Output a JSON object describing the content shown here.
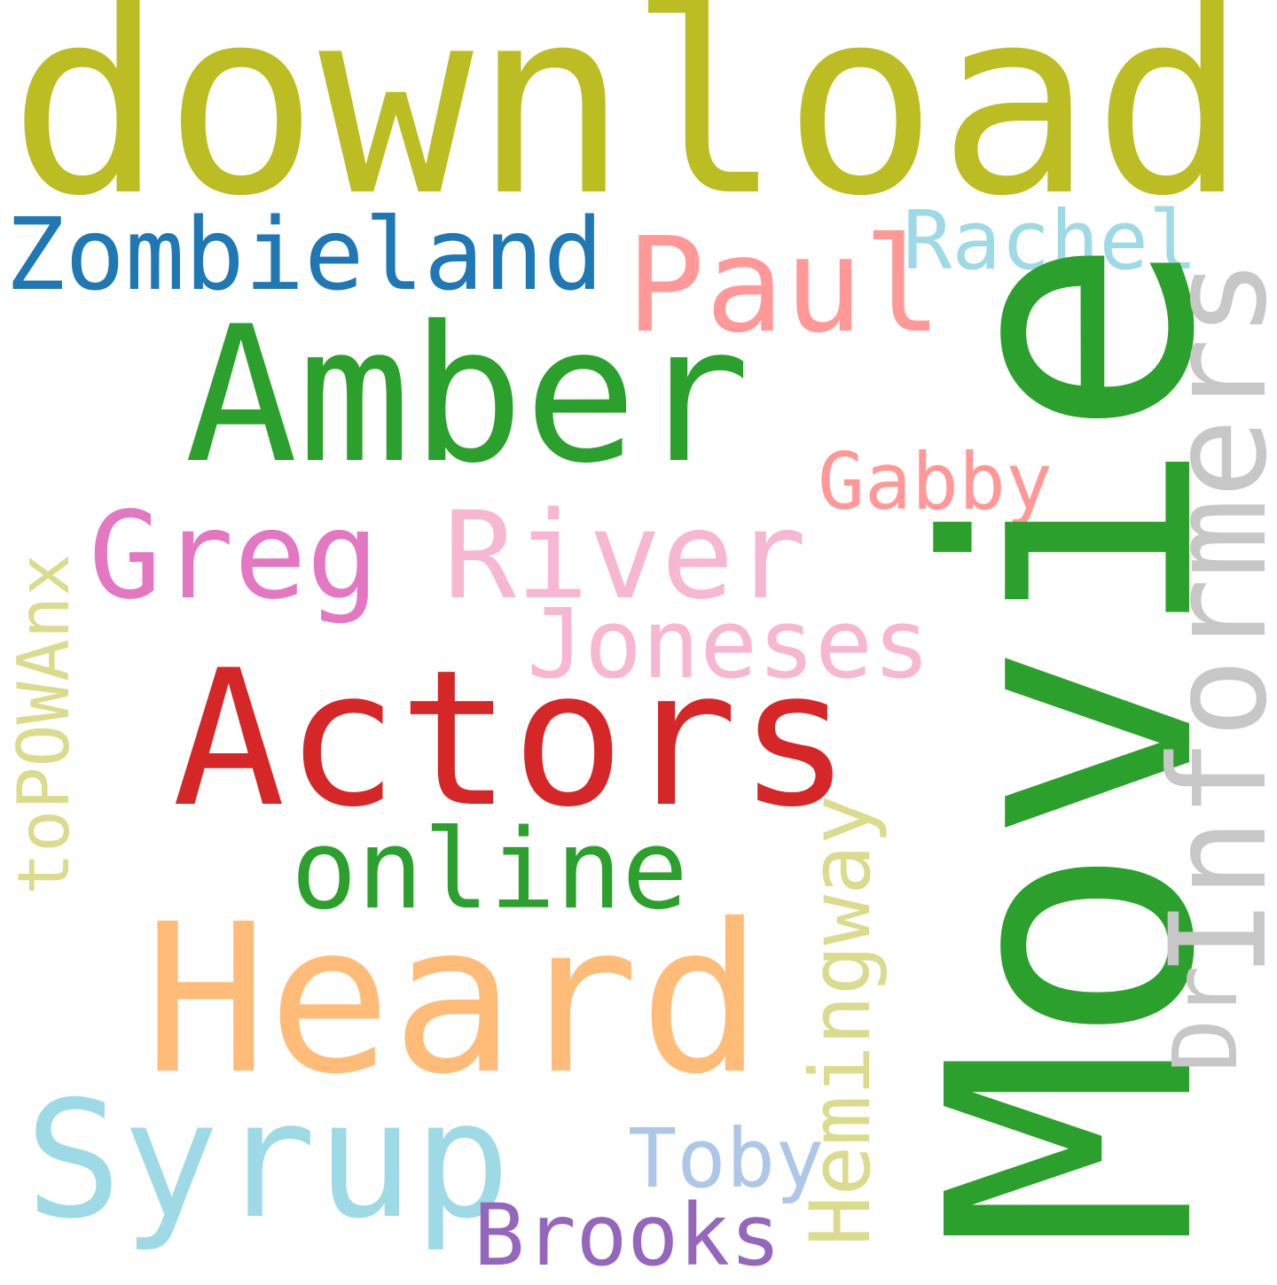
{
  "words": {
    "download": "download",
    "zombieland": "Zombieland",
    "paul": "Paul",
    "rachel": "Rachel",
    "amber": "Amber",
    "gabby": "Gabby",
    "greg": "Greg",
    "river": "River",
    "joneses": "Joneses",
    "actors": "Actors",
    "online": "online",
    "heard": "Heard",
    "syrup": "Syrup",
    "toby": "Toby",
    "brooks": "Brooks",
    "movie": "Movie",
    "informers": "Informers",
    "dr": "Dr",
    "hemingway": "Hemingway",
    "topowanx": "toPOWAnx"
  },
  "colors": {
    "olive": "#bcbd22",
    "blue": "#1f77b4",
    "salmon": "#ff9896",
    "light_cyan": "#9edae5",
    "green": "#2ca02c",
    "pink": "#e377c2",
    "light_pink": "#f7b6d2",
    "red": "#d62728",
    "light_orange": "#ffbb78",
    "light_blue": "#aec7e8",
    "purple": "#9467bd",
    "light_gray": "#c7c7c7",
    "khaki": "#dbdb8d"
  }
}
